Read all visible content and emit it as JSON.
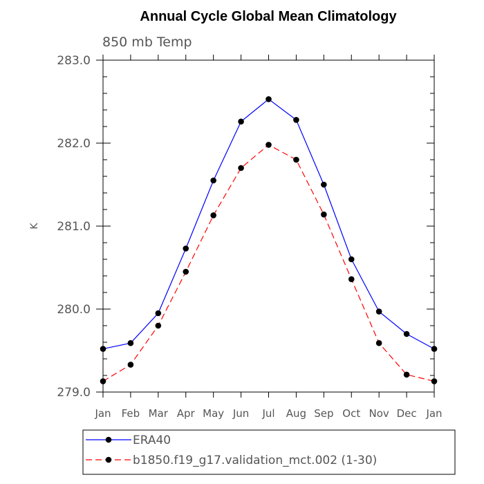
{
  "chart_data": {
    "type": "line",
    "title": "Annual Cycle Global Mean Climatology",
    "subtitle": "850 mb Temp",
    "xlabel": "",
    "ylabel": "K",
    "ylim": [
      279.0,
      283.0
    ],
    "yticks": [
      "279.0",
      "280.0",
      "281.0",
      "282.0",
      "283.0"
    ],
    "categories": [
      "Jan",
      "Feb",
      "Mar",
      "Apr",
      "May",
      "Jun",
      "Jul",
      "Aug",
      "Sep",
      "Oct",
      "Nov",
      "Dec",
      "Jan"
    ],
    "series": [
      {
        "name": "ERA40",
        "color": "#0000ff",
        "dash": "solid",
        "values": [
          279.52,
          279.59,
          279.95,
          280.73,
          281.55,
          282.26,
          282.53,
          282.28,
          281.5,
          280.6,
          279.97,
          279.7,
          279.52
        ]
      },
      {
        "name": "b1850.f19_g17.validation_mct.002 (1-30)",
        "color": "#ff0000",
        "dash": "dashed",
        "values": [
          279.13,
          279.33,
          279.8,
          280.45,
          281.13,
          281.7,
          281.98,
          281.8,
          281.14,
          280.36,
          279.59,
          279.21,
          279.13
        ]
      }
    ],
    "grid": false,
    "legend_position": "bottom"
  }
}
